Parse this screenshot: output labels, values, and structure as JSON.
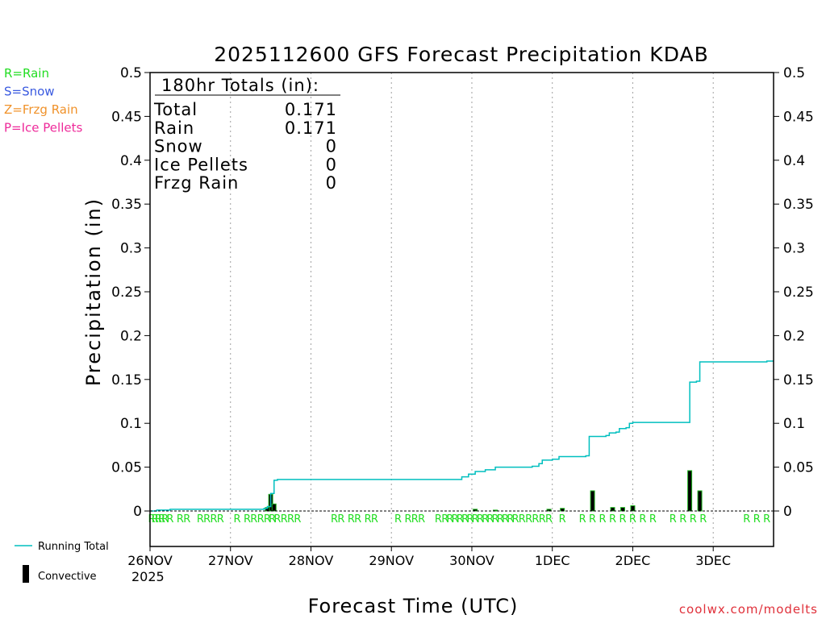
{
  "chart_data": {
    "type": "bar+line",
    "title": "2025112600 GFS Forecast Precipitation KDAB",
    "xlabel": "Forecast Time (UTC)",
    "ylabel": "Precipitation (in)",
    "ylim": [
      0,
      0.5
    ],
    "xlim_hours": [
      0,
      186
    ],
    "y_ticks": [
      {
        "value": 0,
        "label": "0"
      },
      {
        "value": 0.05,
        "label": "0.05"
      },
      {
        "value": 0.1,
        "label": "0.1"
      },
      {
        "value": 0.15,
        "label": "0.15"
      },
      {
        "value": 0.2,
        "label": "0.2"
      },
      {
        "value": 0.25,
        "label": "0.25"
      },
      {
        "value": 0.3,
        "label": "0.3"
      },
      {
        "value": 0.35,
        "label": "0.35"
      },
      {
        "value": 0.4,
        "label": "0.4"
      },
      {
        "value": 0.45,
        "label": "0.45"
      },
      {
        "value": 0.5,
        "label": "0.5"
      }
    ],
    "x_ticks": [
      {
        "hour": 0,
        "label": "26NOV"
      },
      {
        "hour": 24,
        "label": "27NOV"
      },
      {
        "hour": 48,
        "label": "28NOV"
      },
      {
        "hour": 72,
        "label": "29NOV"
      },
      {
        "hour": 96,
        "label": "30NOV"
      },
      {
        "hour": 120,
        "label": "1DEC"
      },
      {
        "hour": 144,
        "label": "2DEC"
      },
      {
        "hour": 168,
        "label": "3DEC"
      }
    ],
    "year_label": "2025",
    "legend_types": [
      {
        "label": "R=Rain",
        "color": "#22dd22"
      },
      {
        "label": "S=Snow",
        "color": "#3a5ae0"
      },
      {
        "label": "Z=Frzg Rain",
        "color": "#f0922a"
      },
      {
        "label": "P=Ice Pellets",
        "color": "#ee2a9a"
      }
    ],
    "legend_series": [
      {
        "label": "Running Total",
        "color": "#00bfbf"
      },
      {
        "label": "Convective",
        "color": "#000000"
      }
    ],
    "totals": {
      "header": "180hr Totals (in):",
      "rows": [
        {
          "label": "Total",
          "value": "0.171"
        },
        {
          "label": "Rain",
          "value": "0.171"
        },
        {
          "label": "Snow",
          "value": "0"
        },
        {
          "label": "Ice Pellets",
          "value": "0"
        },
        {
          "label": "Frzg Rain",
          "value": "0"
        }
      ]
    },
    "running_total": [
      {
        "hour": 0,
        "value": 0
      },
      {
        "hour": 2,
        "value": 0.001
      },
      {
        "hour": 6,
        "value": 0.002
      },
      {
        "hour": 24,
        "value": 0.002
      },
      {
        "hour": 34,
        "value": 0.003
      },
      {
        "hour": 35,
        "value": 0.005
      },
      {
        "hour": 36,
        "value": 0.02
      },
      {
        "hour": 37,
        "value": 0.035
      },
      {
        "hour": 38,
        "value": 0.036
      },
      {
        "hour": 90,
        "value": 0.036
      },
      {
        "hour": 93,
        "value": 0.039
      },
      {
        "hour": 95,
        "value": 0.042
      },
      {
        "hour": 97,
        "value": 0.045
      },
      {
        "hour": 100,
        "value": 0.047
      },
      {
        "hour": 103,
        "value": 0.05
      },
      {
        "hour": 114,
        "value": 0.051
      },
      {
        "hour": 116,
        "value": 0.054
      },
      {
        "hour": 117,
        "value": 0.058
      },
      {
        "hour": 120,
        "value": 0.059
      },
      {
        "hour": 122,
        "value": 0.062
      },
      {
        "hour": 130,
        "value": 0.063
      },
      {
        "hour": 131,
        "value": 0.085
      },
      {
        "hour": 136,
        "value": 0.086
      },
      {
        "hour": 137,
        "value": 0.089
      },
      {
        "hour": 139,
        "value": 0.09
      },
      {
        "hour": 140,
        "value": 0.094
      },
      {
        "hour": 142,
        "value": 0.095
      },
      {
        "hour": 143,
        "value": 0.1
      },
      {
        "hour": 144,
        "value": 0.101
      },
      {
        "hour": 160,
        "value": 0.101
      },
      {
        "hour": 161,
        "value": 0.147
      },
      {
        "hour": 163,
        "value": 0.148
      },
      {
        "hour": 164,
        "value": 0.17
      },
      {
        "hour": 183,
        "value": 0.17
      },
      {
        "hour": 184,
        "value": 0.171
      },
      {
        "hour": 186,
        "value": 0.171
      }
    ],
    "precip_bars": [
      {
        "hour": 36,
        "value": 0.019
      },
      {
        "hour": 37,
        "value": 0.008
      },
      {
        "hour": 35,
        "value": 0.004
      },
      {
        "hour": 97,
        "value": 0.002
      },
      {
        "hour": 103,
        "value": 0.001
      },
      {
        "hour": 119,
        "value": 0.002
      },
      {
        "hour": 123,
        "value": 0.003
      },
      {
        "hour": 132,
        "value": 0.023
      },
      {
        "hour": 138,
        "value": 0.004
      },
      {
        "hour": 141,
        "value": 0.004
      },
      {
        "hour": 144,
        "value": 0.006
      },
      {
        "hour": 161,
        "value": 0.046
      },
      {
        "hour": 164,
        "value": 0.023
      }
    ],
    "type_markers": [
      {
        "hour": 0.5,
        "label": "R"
      },
      {
        "hour": 1.5,
        "label": "R"
      },
      {
        "hour": 2.5,
        "label": "R"
      },
      {
        "hour": 3.5,
        "label": "R"
      },
      {
        "hour": 4.5,
        "label": "R"
      },
      {
        "hour": 6,
        "label": "R"
      },
      {
        "hour": 9,
        "label": "R"
      },
      {
        "hour": 11,
        "label": "R"
      },
      {
        "hour": 15,
        "label": "R"
      },
      {
        "hour": 17,
        "label": "R"
      },
      {
        "hour": 19,
        "label": "R"
      },
      {
        "hour": 21,
        "label": "R"
      },
      {
        "hour": 26,
        "label": "R"
      },
      {
        "hour": 29,
        "label": "R"
      },
      {
        "hour": 31,
        "label": "R"
      },
      {
        "hour": 33,
        "label": "R"
      },
      {
        "hour": 35,
        "label": "R"
      },
      {
        "hour": 36.5,
        "label": "R"
      },
      {
        "hour": 38,
        "label": "R"
      },
      {
        "hour": 40,
        "label": "R"
      },
      {
        "hour": 42,
        "label": "R"
      },
      {
        "hour": 44,
        "label": "R"
      },
      {
        "hour": 55,
        "label": "R"
      },
      {
        "hour": 57,
        "label": "R"
      },
      {
        "hour": 60,
        "label": "R"
      },
      {
        "hour": 62,
        "label": "R"
      },
      {
        "hour": 65,
        "label": "R"
      },
      {
        "hour": 67,
        "label": "R"
      },
      {
        "hour": 74,
        "label": "R"
      },
      {
        "hour": 77,
        "label": "R"
      },
      {
        "hour": 79,
        "label": "R"
      },
      {
        "hour": 81,
        "label": "R"
      },
      {
        "hour": 86,
        "label": "R"
      },
      {
        "hour": 88,
        "label": "R"
      },
      {
        "hour": 89.5,
        "label": "R"
      },
      {
        "hour": 91,
        "label": "R"
      },
      {
        "hour": 92.5,
        "label": "R"
      },
      {
        "hour": 94,
        "label": "R"
      },
      {
        "hour": 95.5,
        "label": "R"
      },
      {
        "hour": 97,
        "label": "R"
      },
      {
        "hour": 98.5,
        "label": "R"
      },
      {
        "hour": 100,
        "label": "R"
      },
      {
        "hour": 101.5,
        "label": "R"
      },
      {
        "hour": 103,
        "label": "R"
      },
      {
        "hour": 104.5,
        "label": "R"
      },
      {
        "hour": 106,
        "label": "R"
      },
      {
        "hour": 107.5,
        "label": "R"
      },
      {
        "hour": 109,
        "label": "R"
      },
      {
        "hour": 111,
        "label": "R"
      },
      {
        "hour": 113,
        "label": "R"
      },
      {
        "hour": 115,
        "label": "R"
      },
      {
        "hour": 117,
        "label": "R"
      },
      {
        "hour": 119,
        "label": "R"
      },
      {
        "hour": 123,
        "label": "R"
      },
      {
        "hour": 129,
        "label": "R"
      },
      {
        "hour": 132,
        "label": "R"
      },
      {
        "hour": 135,
        "label": "R"
      },
      {
        "hour": 138,
        "label": "R"
      },
      {
        "hour": 141,
        "label": "R"
      },
      {
        "hour": 144,
        "label": "R"
      },
      {
        "hour": 147,
        "label": "R"
      },
      {
        "hour": 150,
        "label": "R"
      },
      {
        "hour": 156,
        "label": "R"
      },
      {
        "hour": 159,
        "label": "R"
      },
      {
        "hour": 162,
        "label": "R"
      },
      {
        "hour": 165,
        "label": "R"
      },
      {
        "hour": 178,
        "label": "R"
      },
      {
        "hour": 181,
        "label": "R"
      },
      {
        "hour": 184,
        "label": "R"
      }
    ]
  },
  "credit": "coolwx.com/modelts",
  "colors": {
    "axis": "#000000",
    "grid": "#a0a0a0",
    "running_total": "#00bfbf",
    "bar": "#000000",
    "bar_edge": "#1db31d",
    "rain_marker": "#22dd22",
    "credit": "#e0303a"
  }
}
